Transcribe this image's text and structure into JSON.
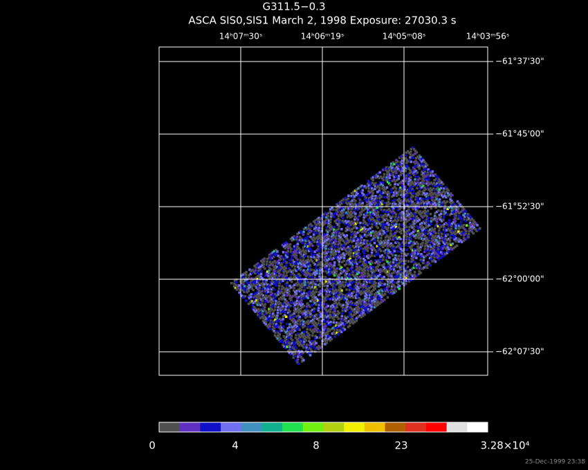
{
  "header": {
    "title": "G311.5−0.3",
    "subtitle": "ASCA SIS0,SIS1 March 2, 1998 Exposure: 27030.3 s"
  },
  "ra_labels": [
    "14ʰ07ᵐ30ˢ",
    "14ʰ06ᵐ19ˢ",
    "14ʰ05ᵐ08ˢ",
    "14ʰ03ᵐ56ˢ"
  ],
  "dec_labels": [
    "−61°37'30\"",
    "−61°45'00\"",
    "−61°52'30\"",
    "−62°00'00\"",
    "−62°07'30\""
  ],
  "colorbar": {
    "colors": [
      "#505050",
      "#6030c0",
      "#1010c8",
      "#7070f0",
      "#4090c0",
      "#10b090",
      "#20e050",
      "#70f010",
      "#b0d010",
      "#f0f000",
      "#f0c000",
      "#b06000",
      "#e03020",
      "#ff0000",
      "#e0e0e0",
      "#ffffff"
    ],
    "labels": [
      "0",
      "4",
      "8",
      "23",
      "3.28×10⁴"
    ]
  },
  "timestamp": "25-Dec-1999 23:38"
}
